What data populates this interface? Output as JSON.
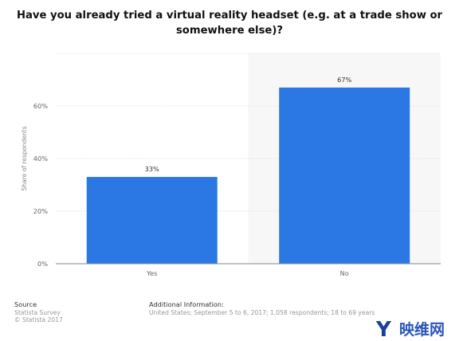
{
  "chart_data": {
    "type": "bar",
    "title": "Have you already tried a virtual reality headset (e.g. at a trade show or somewhere else)?",
    "categories": [
      "Yes",
      "No"
    ],
    "values": [
      33,
      67
    ],
    "value_labels": [
      "33%",
      "67%"
    ],
    "ylabel": "Share of respondents",
    "xlabel": "",
    "ylim": [
      0,
      80
    ],
    "yticks": [
      0,
      20,
      40,
      60
    ],
    "ytick_labels": [
      "0%",
      "20%",
      "40%",
      "60%"
    ],
    "grid": true,
    "bar_color": "#2b78e4",
    "highlight_color": "#f7f7f7"
  },
  "footer": {
    "source_heading": "Source",
    "source_lines": [
      "Statista Survey",
      "© Statista 2017"
    ],
    "additional_heading": "Additional Information:",
    "additional_text": "United States; September 5 to 6, 2017; 1,058 respondents; 18 to 69 years"
  },
  "watermark": {
    "text": "映维网",
    "logo_letter": "Y",
    "logo_color": "#1a3f9c",
    "text_color": "#2b56b8"
  }
}
